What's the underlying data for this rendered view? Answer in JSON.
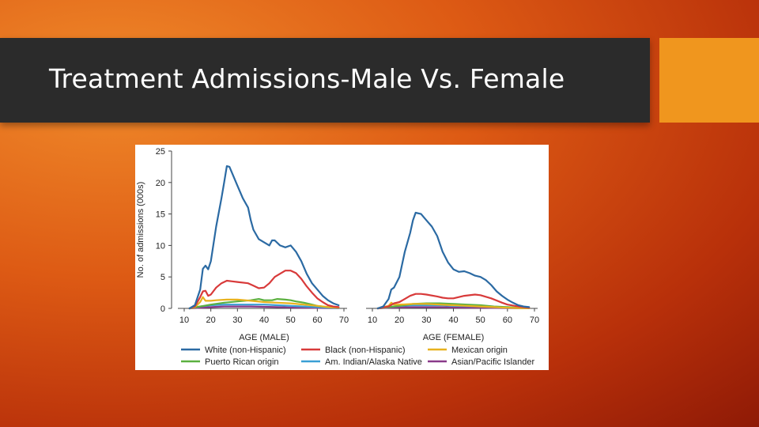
{
  "slide": {
    "title": "Treatment Admissions-Male Vs. Female"
  },
  "colors": {
    "title_bar": "#2b2b2b",
    "accent": "#f0961e"
  },
  "chart_data": [
    {
      "type": "line",
      "panel": "male",
      "xlabel": "AGE (MALE)",
      "ylabel": "No. of admissions (000s)",
      "xlim": [
        10,
        70
      ],
      "ylim": [
        0,
        25
      ],
      "xticks": [
        "10",
        "20",
        "30",
        "40",
        "50",
        "60",
        "70"
      ],
      "yticks": [
        "0",
        "5",
        "10",
        "15",
        "20",
        "25"
      ],
      "series": [
        {
          "name": "White (non-Hispanic)",
          "color": "#2b6aa3",
          "x": [
            12,
            14,
            16,
            17,
            18,
            19,
            20,
            22,
            24,
            25,
            26,
            27,
            28,
            30,
            32,
            34,
            35,
            36,
            38,
            40,
            42,
            43,
            44,
            46,
            48,
            50,
            52,
            54,
            56,
            58,
            60,
            62,
            64,
            66,
            68
          ],
          "y": [
            0,
            0.5,
            3,
            6.3,
            6.8,
            6.2,
            7.5,
            13,
            17.5,
            20,
            22.6,
            22.5,
            21.5,
            19.5,
            17.5,
            16,
            14,
            12.5,
            11,
            10.5,
            10,
            10.8,
            10.8,
            10,
            9.7,
            10,
            9,
            7.5,
            5.5,
            4,
            3,
            2,
            1.3,
            0.8,
            0.5
          ]
        },
        {
          "name": "Black (non-Hispanic)",
          "color": "#d83a3a",
          "x": [
            12,
            14,
            16,
            17,
            18,
            19,
            20,
            22,
            24,
            26,
            28,
            30,
            34,
            36,
            38,
            40,
            42,
            44,
            46,
            48,
            50,
            52,
            54,
            56,
            58,
            60,
            62,
            64,
            66,
            68
          ],
          "y": [
            0,
            0.3,
            1.8,
            2.7,
            2.8,
            2,
            2.2,
            3.3,
            4,
            4.4,
            4.3,
            4.2,
            4,
            3.6,
            3.2,
            3.3,
            4,
            5,
            5.5,
            6,
            6,
            5.6,
            4.7,
            3.5,
            2.5,
            1.6,
            1,
            0.5,
            0.3,
            0.2
          ]
        },
        {
          "name": "Mexican origin",
          "color": "#e8b21e",
          "x": [
            12,
            14,
            16,
            17,
            18,
            20,
            22,
            26,
            30,
            35,
            40,
            45,
            50,
            55,
            60,
            64,
            68
          ],
          "y": [
            0,
            0.2,
            1,
            1.8,
            1.2,
            1.2,
            1.3,
            1.4,
            1.4,
            1.2,
            1,
            0.9,
            0.8,
            0.6,
            0.4,
            0.2,
            0.1
          ]
        },
        {
          "name": "Puerto Rican origin",
          "color": "#5bb040",
          "x": [
            12,
            16,
            20,
            25,
            30,
            35,
            38,
            40,
            43,
            45,
            48,
            50,
            52,
            55,
            58,
            60,
            64,
            68
          ],
          "y": [
            0,
            0.3,
            0.6,
            0.9,
            1.1,
            1.3,
            1.5,
            1.3,
            1.3,
            1.5,
            1.4,
            1.3,
            1.1,
            0.9,
            0.6,
            0.4,
            0.2,
            0.1
          ]
        },
        {
          "name": "Am. Indian/Alaska Native",
          "color": "#3a9fd5",
          "x": [
            12,
            16,
            20,
            25,
            30,
            35,
            40,
            45,
            50,
            55,
            60,
            64,
            68
          ],
          "y": [
            0,
            0.3,
            0.5,
            0.6,
            0.6,
            0.6,
            0.6,
            0.5,
            0.4,
            0.3,
            0.2,
            0.1,
            0.05
          ]
        },
        {
          "name": "Asian/Pacific Islander",
          "color": "#8a3a8a",
          "x": [
            12,
            16,
            20,
            25,
            30,
            35,
            40,
            45,
            50,
            55,
            60,
            64,
            68
          ],
          "y": [
            0,
            0.1,
            0.2,
            0.3,
            0.3,
            0.3,
            0.25,
            0.2,
            0.15,
            0.1,
            0.08,
            0.05,
            0.03
          ]
        }
      ]
    },
    {
      "type": "line",
      "panel": "female",
      "xlabel": "AGE (FEMALE)",
      "xlim": [
        10,
        70
      ],
      "ylim": [
        0,
        25
      ],
      "xticks": [
        "10",
        "20",
        "30",
        "40",
        "50",
        "60",
        "70"
      ],
      "series": [
        {
          "name": "White (non-Hispanic)",
          "color": "#2b6aa3",
          "x": [
            12,
            14,
            16,
            17,
            18,
            20,
            22,
            24,
            25,
            26,
            28,
            30,
            32,
            34,
            36,
            38,
            40,
            42,
            44,
            46,
            48,
            50,
            52,
            54,
            56,
            58,
            60,
            62,
            64,
            66,
            68
          ],
          "y": [
            0,
            0.3,
            1.5,
            3,
            3.3,
            5,
            9,
            12,
            14,
            15.2,
            15,
            14,
            13,
            11.5,
            9,
            7.3,
            6.2,
            5.8,
            5.9,
            5.6,
            5.2,
            5,
            4.5,
            3.7,
            2.7,
            2,
            1.4,
            0.9,
            0.5,
            0.3,
            0.2
          ]
        },
        {
          "name": "Black (non-Hispanic)",
          "color": "#d83a3a",
          "x": [
            12,
            16,
            18,
            20,
            22,
            24,
            26,
            28,
            30,
            34,
            36,
            38,
            40,
            44,
            48,
            50,
            54,
            58,
            60,
            64,
            68
          ],
          "y": [
            0,
            0.3,
            0.8,
            1,
            1.5,
            2,
            2.3,
            2.3,
            2.2,
            1.9,
            1.7,
            1.6,
            1.6,
            2,
            2.2,
            2.1,
            1.6,
            0.9,
            0.6,
            0.3,
            0.1
          ]
        },
        {
          "name": "Mexican origin",
          "color": "#e8b21e",
          "x": [
            12,
            16,
            17,
            18,
            20,
            25,
            30,
            35,
            40,
            45,
            50,
            55,
            60,
            64,
            68
          ],
          "y": [
            0,
            0.4,
            0.9,
            0.6,
            0.6,
            0.7,
            0.7,
            0.6,
            0.5,
            0.4,
            0.3,
            0.2,
            0.1,
            0.05,
            0.03
          ]
        },
        {
          "name": "Puerto Rican origin",
          "color": "#5bb040",
          "x": [
            12,
            16,
            20,
            25,
            30,
            35,
            40,
            45,
            50,
            55,
            60,
            64,
            68
          ],
          "y": [
            0,
            0.2,
            0.4,
            0.7,
            0.8,
            0.8,
            0.7,
            0.6,
            0.5,
            0.3,
            0.2,
            0.1,
            0.05
          ]
        },
        {
          "name": "Am. Indian/Alaska Native",
          "color": "#3a9fd5",
          "x": [
            12,
            16,
            20,
            25,
            30,
            35,
            40,
            45,
            50,
            55,
            60,
            64,
            68
          ],
          "y": [
            0,
            0.2,
            0.4,
            0.5,
            0.5,
            0.5,
            0.4,
            0.35,
            0.3,
            0.2,
            0.1,
            0.05,
            0.03
          ]
        },
        {
          "name": "Asian/Pacific Islander",
          "color": "#8a3a8a",
          "x": [
            12,
            16,
            20,
            25,
            30,
            35,
            40,
            45,
            50,
            55,
            60,
            64,
            68
          ],
          "y": [
            0,
            0.1,
            0.15,
            0.2,
            0.2,
            0.2,
            0.15,
            0.12,
            0.1,
            0.08,
            0.05,
            0.03,
            0.02
          ]
        }
      ]
    }
  ]
}
